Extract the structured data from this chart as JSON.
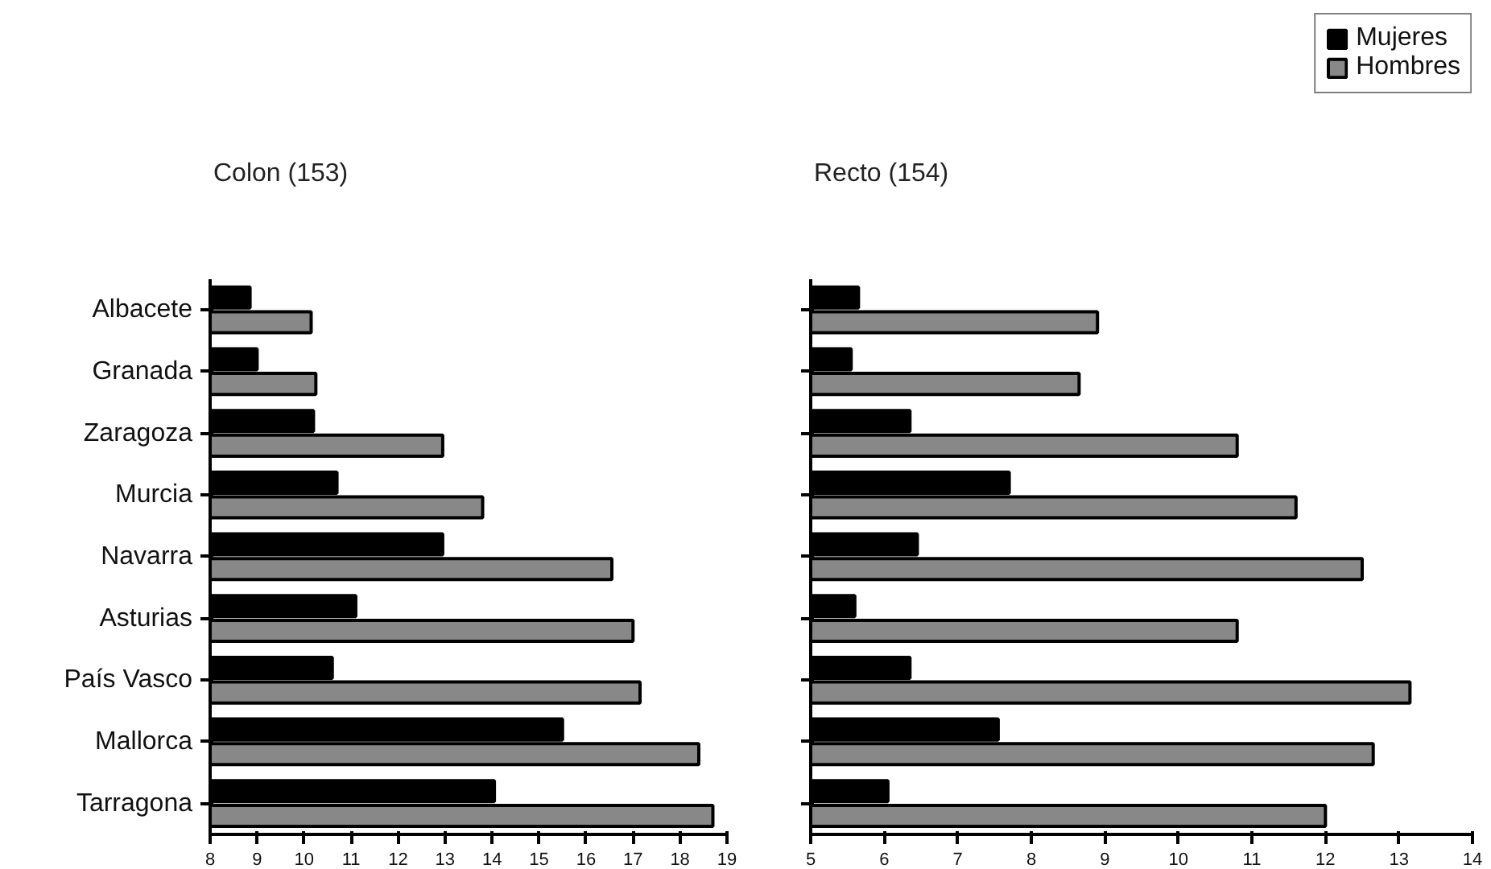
{
  "chart_data": [
    {
      "type": "bar",
      "orientation": "horizontal",
      "title": "Colon (153)",
      "categories": [
        "Albacete",
        "Granada",
        "Zaragoza",
        "Murcia",
        "Navarra",
        "Asturias",
        "País Vasco",
        "Mallorca",
        "Tarragona"
      ],
      "series": [
        {
          "color": "#000000",
          "values": [
            8.85,
            9.0,
            10.2,
            10.7,
            12.95,
            11.1,
            10.6,
            15.5,
            14.05
          ]
        },
        {
          "color": "#888888",
          "values": [
            10.15,
            10.25,
            12.95,
            13.8,
            16.55,
            17.0,
            17.15,
            18.4,
            18.7
          ]
        }
      ],
      "xlim": [
        8,
        19
      ],
      "xticks": [
        8,
        9,
        10,
        11,
        12,
        13,
        14,
        15,
        16,
        17,
        18,
        19
      ],
      "grid": false
    },
    {
      "type": "bar",
      "orientation": "horizontal",
      "title": "Recto (154)",
      "categories": [
        null,
        null,
        null,
        null,
        null,
        null,
        null,
        null,
        null
      ],
      "series": [
        {
          "name": "Mujeres",
          "color": "#000000",
          "values": [
            5.65,
            5.55,
            6.35,
            7.7,
            6.45,
            5.6,
            6.35,
            7.55,
            6.05
          ]
        },
        {
          "name": "Hombres",
          "color": "#888888",
          "values": [
            8.9,
            8.65,
            10.8,
            11.6,
            12.5,
            10.8,
            13.15,
            12.65,
            12.0
          ]
        }
      ],
      "xlim": [
        5,
        14
      ],
      "xticks": [
        5,
        6,
        7,
        8,
        9,
        10,
        11,
        12,
        13,
        14
      ],
      "grid": false,
      "legend": "top right",
      "tick_labels": "x"
    }
  ]
}
